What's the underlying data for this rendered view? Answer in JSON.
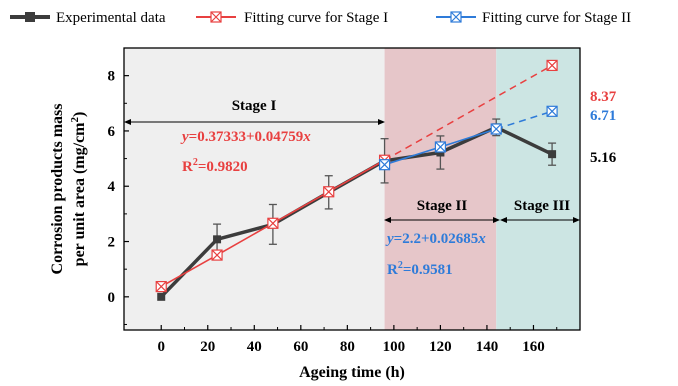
{
  "chart_data": {
    "type": "line",
    "xlabel": "Ageing time (h)",
    "ylabel_line1": "Corrosion products mass",
    "ylabel_line2": "per unit area (mg/cm",
    "ylabel_sup": "2",
    "ylabel_close": ")",
    "xlim": [
      -16,
      180
    ],
    "ylim": [
      -1.2,
      9.0
    ],
    "x_ticks": [
      0,
      20,
      40,
      60,
      80,
      100,
      120,
      140,
      160
    ],
    "y_ticks": [
      0,
      2,
      4,
      6,
      8
    ],
    "legend": {
      "position": "top",
      "items": [
        "Experimental data",
        "Fitting curve for Stage I",
        "Fitting curve for Stage II"
      ]
    },
    "regions": [
      {
        "label": "Stage I",
        "x_start": -16,
        "x_end": 96,
        "color": "#efefef"
      },
      {
        "label": "Stage II",
        "x_start": 96,
        "x_end": 144,
        "color": "#e6c6c9"
      },
      {
        "label": "Stage III",
        "x_start": 144,
        "x_end": 180,
        "color": "#cce5e3"
      }
    ],
    "series": [
      {
        "name": "Experimental data",
        "color": "#3c3c3c",
        "marker": "square",
        "x": [
          0,
          24,
          48,
          72,
          96,
          120,
          144,
          168
        ],
        "y": [
          0.0,
          2.08,
          2.62,
          3.78,
          4.92,
          5.22,
          6.13,
          5.16
        ],
        "err": [
          0,
          0.55,
          0.72,
          0.6,
          0.8,
          0.6,
          0.3,
          0.4
        ]
      },
      {
        "name": "Fitting curve for Stage I",
        "color": "#e84040",
        "marker": "square-x",
        "x": [
          0,
          24,
          48,
          72,
          96
        ],
        "y": [
          0.37,
          1.51,
          2.66,
          3.8,
          4.94
        ],
        "extrapolated_x": [
          96,
          120,
          144,
          168
        ],
        "extrapolated_y": [
          4.94,
          6.08,
          7.23,
          8.37
        ]
      },
      {
        "name": "Fitting curve for Stage II",
        "color": "#2e7bd9",
        "marker": "square-x",
        "x": [
          96,
          120,
          144
        ],
        "y": [
          4.78,
          5.42,
          6.07
        ],
        "extrapolated_x": [
          144,
          168
        ],
        "extrapolated_y": [
          6.07,
          6.71
        ]
      }
    ],
    "annotations": {
      "stage1_label": "Stage I",
      "stage2_label": "Stage II",
      "stage3_label": "Stage III",
      "eq1_var": "y",
      "eq1_rhs": "=0.37333+0.04759",
      "eq1_x": "x",
      "r2_1_prefix": "R",
      "r2_1_sup": "2",
      "r2_1_value": "=0.9820",
      "eq2_var": "y",
      "eq2_rhs": "=2.2+0.02685",
      "eq2_x": "x",
      "r2_2_prefix": "R",
      "r2_2_sup": "2",
      "r2_2_value": "=0.9581",
      "end_value_1": "8.37",
      "end_value_2": "6.71",
      "end_value_3": "5.16"
    }
  }
}
